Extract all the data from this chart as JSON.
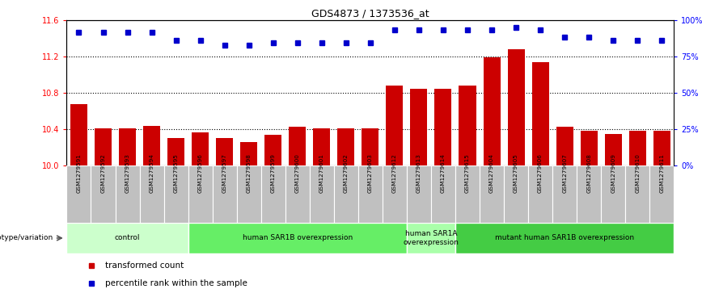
{
  "title": "GDS4873 / 1373536_at",
  "samples": [
    "GSM1279591",
    "GSM1279592",
    "GSM1279593",
    "GSM1279594",
    "GSM1279595",
    "GSM1279596",
    "GSM1279597",
    "GSM1279598",
    "GSM1279599",
    "GSM1279600",
    "GSM1279601",
    "GSM1279602",
    "GSM1279603",
    "GSM1279612",
    "GSM1279613",
    "GSM1279614",
    "GSM1279615",
    "GSM1279604",
    "GSM1279605",
    "GSM1279606",
    "GSM1279607",
    "GSM1279608",
    "GSM1279609",
    "GSM1279610",
    "GSM1279611"
  ],
  "bar_values": [
    10.68,
    10.41,
    10.41,
    10.44,
    10.3,
    10.37,
    10.3,
    10.26,
    10.34,
    10.43,
    10.41,
    10.41,
    10.41,
    10.88,
    10.85,
    10.85,
    10.88,
    11.19,
    11.28,
    11.14,
    10.43,
    10.38,
    10.35,
    10.38,
    10.38
  ],
  "percentile_values": [
    11.47,
    11.47,
    11.47,
    11.47,
    11.38,
    11.38,
    11.33,
    11.33,
    11.35,
    11.35,
    11.35,
    11.35,
    11.35,
    11.5,
    11.5,
    11.5,
    11.5,
    11.5,
    11.52,
    11.5,
    11.42,
    11.42,
    11.38,
    11.38,
    11.38
  ],
  "ylim": [
    10.0,
    11.6
  ],
  "yticks_left": [
    10.0,
    10.4,
    10.8,
    11.2,
    11.6
  ],
  "yticks_right": [
    0,
    25,
    50,
    75,
    100
  ],
  "bar_color": "#cc0000",
  "dot_color": "#0000cc",
  "groups": [
    {
      "label": "control",
      "start": 0,
      "end": 5,
      "color": "#ccffcc"
    },
    {
      "label": "human SAR1B overexpression",
      "start": 5,
      "end": 14,
      "color": "#66ee66"
    },
    {
      "label": "human SAR1A\noverexpression",
      "start": 14,
      "end": 16,
      "color": "#aaffaa"
    },
    {
      "label": "mutant human SAR1B overexpression",
      "start": 16,
      "end": 25,
      "color": "#44cc44"
    }
  ],
  "xlabel_bg_color": "#bbbbbb",
  "genotype_label": "genotype/variation",
  "legend_items": [
    {
      "label": "transformed count",
      "color": "#cc0000"
    },
    {
      "label": "percentile rank within the sample",
      "color": "#0000cc"
    }
  ]
}
